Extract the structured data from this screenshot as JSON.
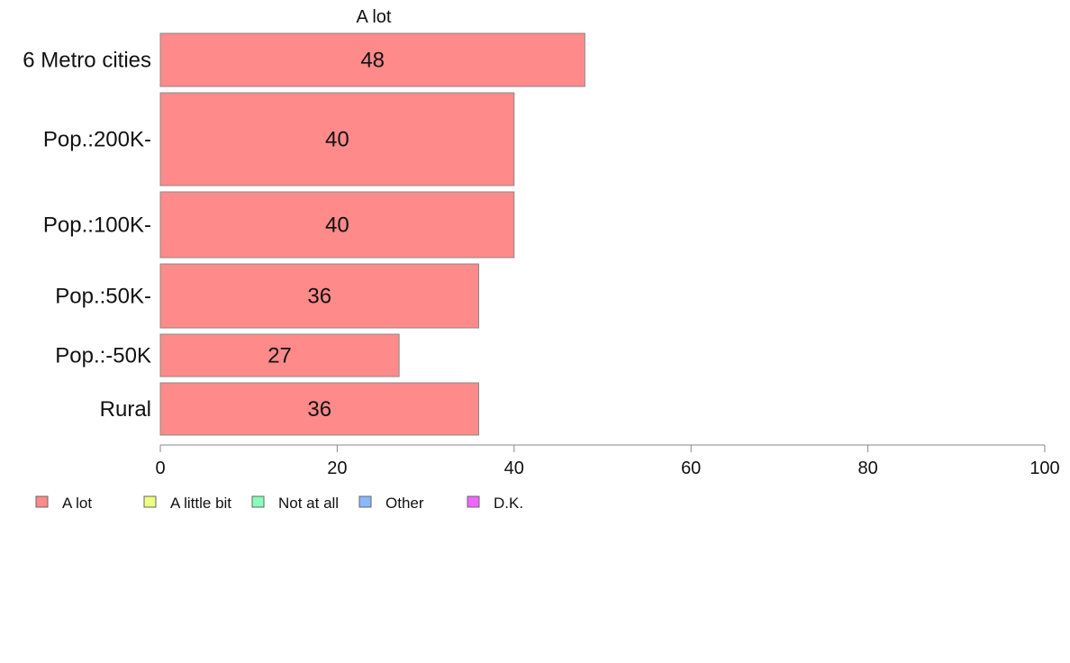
{
  "chart_data": {
    "type": "bar",
    "orientation": "horizontal",
    "title": "A lot",
    "categories": [
      "6 Metro cities",
      "Pop.:200K-",
      "Pop.:100K-",
      "Pop.:50K-",
      "Pop.:-50K",
      "Rural"
    ],
    "values": [
      48,
      40,
      40,
      36,
      27,
      36
    ],
    "value_labels": [
      "48",
      "40",
      "40",
      "36",
      "27",
      "36"
    ],
    "xlim": [
      0,
      100
    ],
    "xticks": [
      0,
      20,
      40,
      60,
      80,
      100
    ],
    "xtick_labels": [
      "0",
      "20",
      "40",
      "60",
      "80",
      "100"
    ],
    "grid": false,
    "legend_position": "bottom-left",
    "bar_color": "#ff8a8a",
    "legend": [
      {
        "label": "A lot",
        "color": "#ff8a8a"
      },
      {
        "label": "A little bit",
        "color": "#eeff80"
      },
      {
        "label": "Not at all",
        "color": "#88ffbb"
      },
      {
        "label": "Other",
        "color": "#88b8ff"
      },
      {
        "label": "D.K.",
        "color": "#ee66ff"
      }
    ]
  }
}
